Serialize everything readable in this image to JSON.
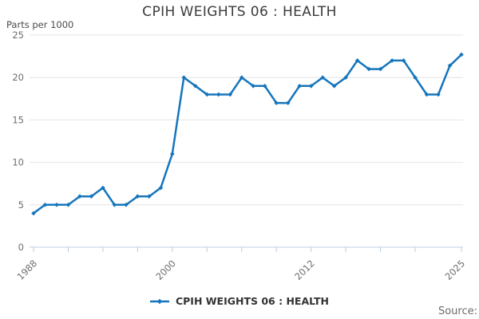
{
  "header": {
    "title": "CPIH WEIGHTS 06 : HEALTH",
    "units_label": "Parts per 1000"
  },
  "legend": {
    "label": "CPIH WEIGHTS 06 : HEALTH"
  },
  "footer": {
    "source_label": "Source:"
  },
  "colors": {
    "line": "#1575bc",
    "grid": "#e4e4e4",
    "axis": "#bccde0",
    "tick_text": "#6d6d6d",
    "title_text": "#3b3b3b"
  },
  "chart_data": {
    "type": "line",
    "title": "CPIH WEIGHTS 06 : HEALTH",
    "ylabel": "Parts per 1000",
    "xlabel": "",
    "ylim": [
      0,
      25
    ],
    "yticks": [
      0,
      5,
      10,
      15,
      20,
      25
    ],
    "xticks": [
      1988,
      1991,
      1994,
      1997,
      2000,
      2003,
      2006,
      2009,
      2012,
      2015,
      2018,
      2021,
      2025
    ],
    "xtick_labels": [
      "1988",
      "2000",
      "2012",
      "2025"
    ],
    "grid": "horizontal",
    "legend_position": "bottom-center",
    "x": [
      1988,
      1989,
      1990,
      1991,
      1992,
      1993,
      1994,
      1995,
      1996,
      1997,
      1998,
      1999,
      2000,
      2001,
      2002,
      2003,
      2004,
      2005,
      2006,
      2007,
      2008,
      2009,
      2010,
      2011,
      2012,
      2013,
      2014,
      2015,
      2016,
      2017,
      2018,
      2019,
      2020,
      2021,
      2022,
      2023,
      2024,
      2025
    ],
    "series": [
      {
        "name": "CPIH WEIGHTS 06 : HEALTH",
        "color": "#1575bc",
        "values": [
          4,
          5,
          5,
          5,
          6,
          6,
          7,
          5,
          5,
          6,
          6,
          7,
          11,
          20,
          19,
          18,
          18,
          18,
          20,
          19,
          19,
          17,
          17,
          19,
          19,
          20,
          19,
          20,
          22,
          21,
          21,
          22,
          22,
          20,
          18,
          18,
          21.4,
          22.7
        ]
      }
    ]
  }
}
